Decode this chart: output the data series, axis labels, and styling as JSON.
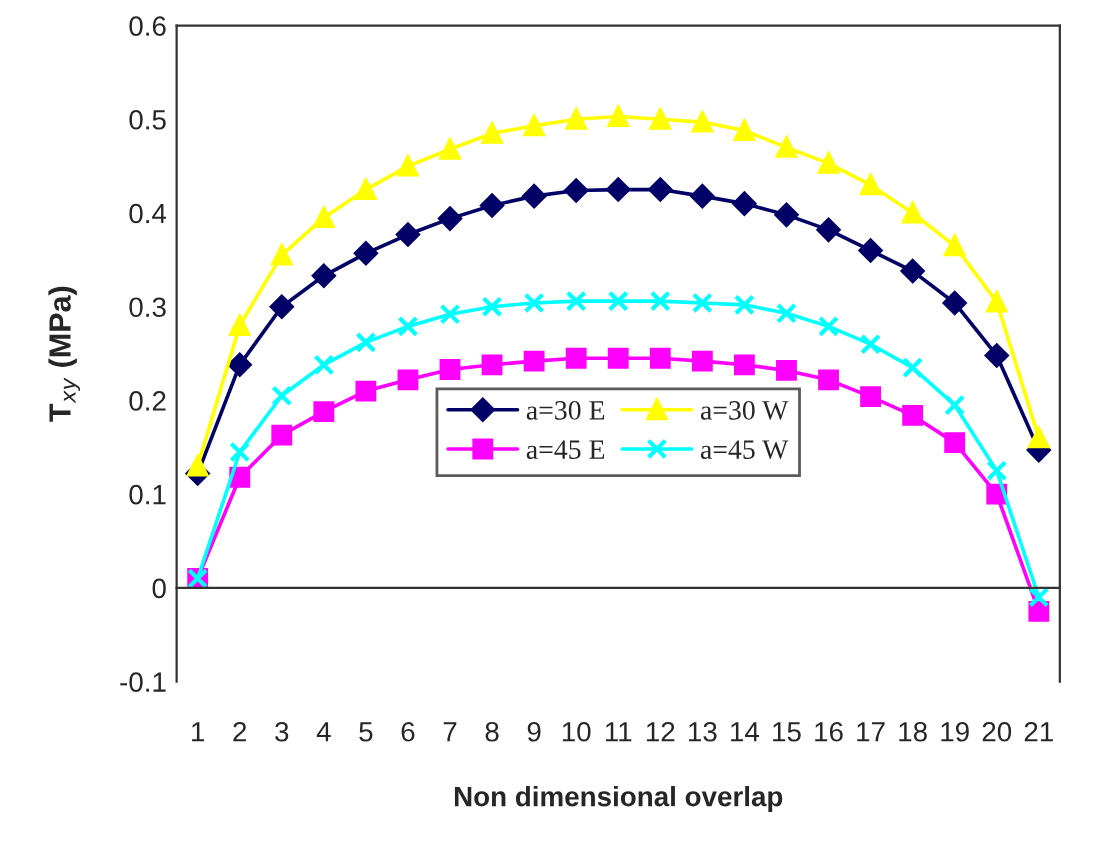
{
  "chart_data": {
    "type": "line",
    "xlabel": "Non dimensional overlap",
    "ylabel": "T$_{xy}$ (MPa)",
    "categories": [
      "1",
      "2",
      "3",
      "4",
      "5",
      "6",
      "7",
      "8",
      "9",
      "10",
      "11",
      "12",
      "13",
      "14",
      "15",
      "16",
      "17",
      "18",
      "19",
      "20",
      "21"
    ],
    "ylim": [
      -0.1,
      0.6
    ],
    "yticks": [
      -0.1,
      0,
      0.1,
      0.2,
      0.3,
      0.4,
      0.5,
      0.6
    ],
    "legend": "center",
    "series": [
      {
        "name": "a=30 E",
        "color": "#000066",
        "marker": "diamond",
        "values": [
          0.122,
          0.238,
          0.3,
          0.333,
          0.357,
          0.377,
          0.394,
          0.408,
          0.418,
          0.424,
          0.425,
          0.425,
          0.418,
          0.41,
          0.398,
          0.382,
          0.36,
          0.338,
          0.304,
          0.248,
          0.147
        ]
      },
      {
        "name": "a=30 W",
        "color": "#ffff00",
        "marker": "triangle",
        "values": [
          0.13,
          0.28,
          0.355,
          0.395,
          0.425,
          0.45,
          0.468,
          0.485,
          0.493,
          0.5,
          0.503,
          0.5,
          0.497,
          0.488,
          0.47,
          0.453,
          0.43,
          0.4,
          0.365,
          0.305,
          0.16
        ]
      },
      {
        "name": "a=45 E",
        "color": "#ff00ff",
        "marker": "square",
        "values": [
          0.01,
          0.118,
          0.163,
          0.188,
          0.21,
          0.222,
          0.233,
          0.238,
          0.242,
          0.245,
          0.245,
          0.245,
          0.242,
          0.238,
          0.232,
          0.222,
          0.204,
          0.184,
          0.155,
          0.1,
          -0.025
        ]
      },
      {
        "name": "a=45 W",
        "color": "#00ffff",
        "marker": "cross",
        "values": [
          0.01,
          0.145,
          0.205,
          0.238,
          0.262,
          0.279,
          0.292,
          0.3,
          0.304,
          0.306,
          0.306,
          0.306,
          0.304,
          0.302,
          0.293,
          0.279,
          0.26,
          0.235,
          0.195,
          0.125,
          -0.01
        ]
      }
    ]
  }
}
